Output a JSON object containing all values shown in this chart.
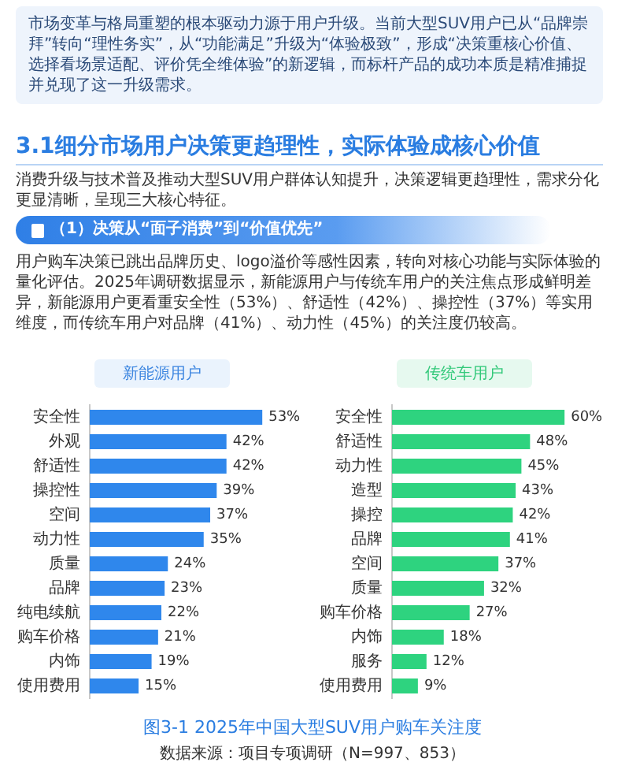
{
  "chart_data": [
    {
      "type": "bar",
      "orientation": "horizontal",
      "title": "新能源用户",
      "categories": [
        "安全性",
        "外观",
        "舒适性",
        "操控性",
        "空间",
        "动力性",
        "质量",
        "品牌",
        "纯电续航",
        "购车价格",
        "内饰",
        "使用费用"
      ],
      "values": [
        53,
        42,
        42,
        39,
        37,
        35,
        24,
        23,
        22,
        21,
        19,
        15
      ],
      "value_labels": [
        "53%",
        "42%",
        "42%",
        "39%",
        "37%",
        "35%",
        "24%",
        "23%",
        "22%",
        "21%",
        "19%",
        "15%"
      ],
      "color": "#2f87ec",
      "annotations": [
        "市场变革与格局重塑的根本驱动力源于用户升级。当前大型SUV用户已从“品牌崇拜”转向“理性务实”，从“功能满足”升级为“体验极致”，形成“决策重核心价值、选择看场景适配、评价凭全维体验”的新逻辑，而标杆产品的成功本质是精准捕捉并兑现了这一升级需求。",
        "3.1细分市场用户决策更趋理性，实际体验成核心价值",
        "消费升级与技术普及推动大型SUV用户群体认知提升，决策逻辑更趋理性，需求分化更显清晰，呈现三大核心特征。",
        "（1）决策从“面子消费”到“价值优先”",
        "用户购车决策已跳出品牌历史、logo溢价等感性因素，转向对核心功能与实际体验的量化评估。2025年调研数据显示，新能源用户与传统车用户的关注焦点形成鲜明差异，新能源用户更看重安全性（53%）、舒适性（42%）、操控性（37%）等实用维度，而传统车用户对品牌（41%）、动力性（45%）的关注度仍较高。",
        "图3-1 2025年中国大型SUV用户购车关注度",
        "数据来源：项目专项调研（N=997、853）"
      ]
    },
    {
      "type": "bar",
      "orientation": "horizontal",
      "title": "传统车用户",
      "categories": [
        "安全性",
        "舒适性",
        "动力性",
        "造型",
        "操控",
        "品牌",
        "空间",
        "质量",
        "购车价格",
        "内饰",
        "服务",
        "使用费用"
      ],
      "values": [
        60,
        48,
        45,
        43,
        42,
        41,
        37,
        32,
        27,
        18,
        12,
        9
      ],
      "value_labels": [
        "60%",
        "48%",
        "45%",
        "43%",
        "42%",
        "41%",
        "37%",
        "32%",
        "27%",
        "18%",
        "12%",
        "9%"
      ],
      "color": "#2ed37f"
    }
  ]
}
